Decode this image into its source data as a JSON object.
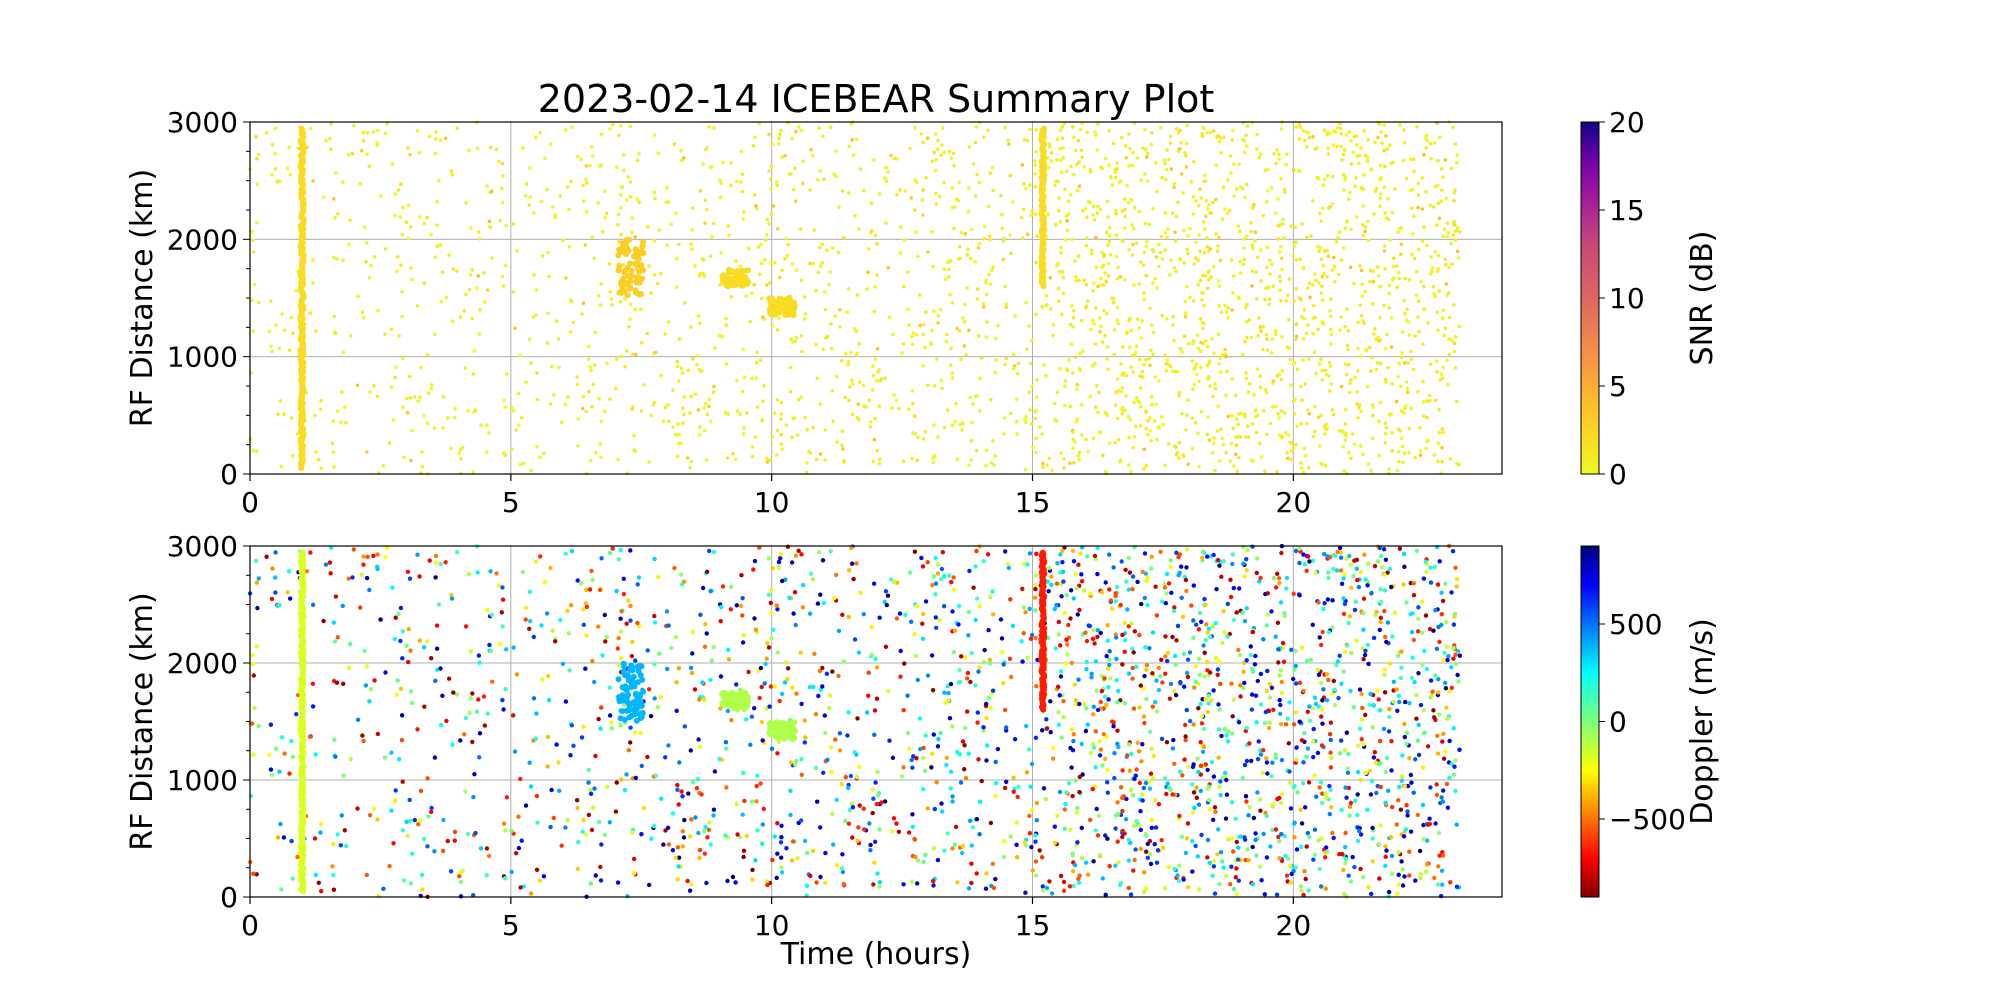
{
  "chart_data": {
    "title": "2023-02-14 ICEBEAR Summary Plot",
    "xlabel": "Time (hours)",
    "xlim": [
      0,
      24
    ],
    "x_ticks": [
      0,
      5,
      10,
      15,
      20
    ],
    "grid": true,
    "panels": [
      {
        "type": "scatter",
        "ylabel": "RF Distance (km)",
        "ylim": [
          0,
          3000
        ],
        "y_ticks": [
          0,
          1000,
          2000,
          3000
        ],
        "color_variable": "SNR",
        "colorbar": {
          "label": "SNR (dB)",
          "colormap": "plasma_r",
          "range": [
            0,
            20
          ],
          "ticks": [
            0,
            5,
            10,
            15,
            20
          ]
        },
        "features": [
          {
            "kind": "vertical_streak",
            "time": 1.0,
            "range_km": [
              50,
              2950
            ],
            "value": 2
          },
          {
            "kind": "vertical_streak",
            "time": 15.2,
            "range_km": [
              1600,
              2950
            ],
            "value": 2
          },
          {
            "kind": "cluster",
            "time": 7.3,
            "range_km": [
              1500,
              2000
            ],
            "value": 3
          },
          {
            "kind": "cluster",
            "time": 9.3,
            "range_km": [
              1600,
              1750
            ],
            "value": 2
          },
          {
            "kind": "cluster",
            "time": 10.2,
            "range_km": [
              1350,
              1500
            ],
            "value": 2
          }
        ],
        "background": {
          "time_range": [
            0,
            23.2
          ],
          "range_km": [
            0,
            3000
          ],
          "density": "increasing after 15 h",
          "value_range": [
            0,
            4
          ]
        }
      },
      {
        "type": "scatter",
        "ylabel": "RF Distance (km)",
        "ylim": [
          0,
          3000
        ],
        "y_ticks": [
          0,
          1000,
          2000,
          3000
        ],
        "color_variable": "Doppler",
        "colorbar": {
          "label": "Doppler (m/s)",
          "colormap": "jet_r",
          "range": [
            -900,
            900
          ],
          "ticks": [
            -500,
            0,
            500
          ],
          "tick_labels": [
            "−500",
            "0",
            "500"
          ]
        },
        "features": [
          {
            "kind": "vertical_streak",
            "time": 1.0,
            "range_km": [
              50,
              2950
            ],
            "value": -180
          },
          {
            "kind": "vertical_streak",
            "time": 15.2,
            "range_km": [
              1600,
              2950
            ],
            "value": -650
          },
          {
            "kind": "cluster",
            "time": 7.3,
            "range_km": [
              1500,
              2000
            ],
            "value": 380
          },
          {
            "kind": "cluster",
            "time": 9.3,
            "range_km": [
              1600,
              1750
            ],
            "value": -100
          },
          {
            "kind": "cluster",
            "time": 10.2,
            "range_km": [
              1350,
              1500
            ],
            "value": -100
          }
        ],
        "background": {
          "time_range": [
            0,
            23.2
          ],
          "range_km": [
            0,
            3000
          ],
          "density": "increasing after 15 h",
          "value_range": [
            -900,
            900
          ]
        }
      }
    ]
  }
}
